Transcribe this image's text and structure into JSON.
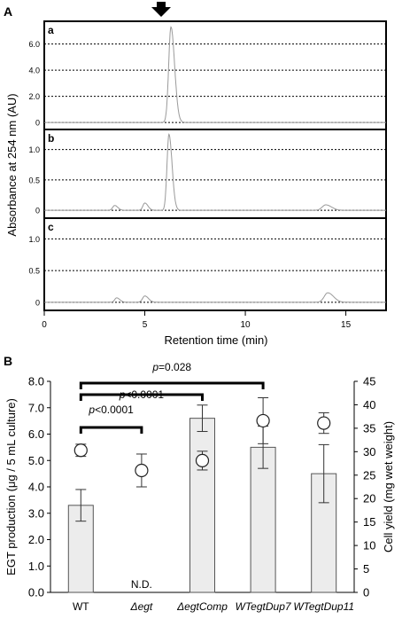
{
  "panel_a": {
    "label": "A",
    "ylabel": "Absorbance at 254 nm (AU)",
    "xlabel": "Retention time (min)",
    "arrow_icon": "down-arrow-icon",
    "colors": {
      "trace": "#9a9a9a",
      "frame": "#000000",
      "grid": "#000000"
    },
    "xticks": [
      0,
      5,
      10,
      15
    ],
    "xlim": [
      0,
      17
    ],
    "subplots": [
      {
        "label": "a",
        "yticks": [
          {
            "v": 0,
            "label": "0"
          },
          {
            "v": 2,
            "label": "2.0"
          },
          {
            "v": 4,
            "label": "4.0"
          },
          {
            "v": 6,
            "label": "6.0"
          }
        ],
        "ylim": [
          -0.4,
          7.6
        ],
        "series": [
          {
            "center": 6.3,
            "height": 7.3,
            "width": 0.14
          }
        ]
      },
      {
        "label": "b",
        "yticks": [
          {
            "v": 0,
            "label": "0"
          },
          {
            "v": 0.5,
            "label": "0.5"
          },
          {
            "v": 1.0,
            "label": "1.0"
          }
        ],
        "ylim": [
          -0.1,
          1.3
        ],
        "series": [
          {
            "center": 3.5,
            "height": 0.08,
            "width": 0.12
          },
          {
            "center": 5.0,
            "height": 0.12,
            "width": 0.12
          },
          {
            "center": 6.2,
            "height": 1.25,
            "width": 0.12
          },
          {
            "center": 14.0,
            "height": 0.09,
            "width": 0.22
          }
        ]
      },
      {
        "label": "c",
        "yticks": [
          {
            "v": 0,
            "label": "0"
          },
          {
            "v": 0.5,
            "label": "0.5"
          },
          {
            "v": 1.0,
            "label": "1.0"
          }
        ],
        "ylim": [
          -0.1,
          1.3
        ],
        "series": [
          {
            "center": 3.6,
            "height": 0.07,
            "width": 0.12
          },
          {
            "center": 5.0,
            "height": 0.1,
            "width": 0.14
          },
          {
            "center": 14.1,
            "height": 0.15,
            "width": 0.22
          }
        ]
      }
    ]
  },
  "chart_data": {
    "type": "bar",
    "panel_label": "B",
    "categories": [
      "WT",
      "Δegt",
      "ΔegtComp",
      "WTegtDup7",
      "WTegtDup11"
    ],
    "category_italic": [
      false,
      true,
      true,
      true,
      true
    ],
    "ylabel": "EGT production (μg / 5 mL culture)",
    "y2label": "Cell yield (mg wet weight)",
    "ylim": [
      0,
      8
    ],
    "y2lim": [
      0,
      45
    ],
    "yticks": [
      "0.0",
      "1.0",
      "2.0",
      "3.0",
      "4.0",
      "5.0",
      "6.0",
      "7.0",
      "8.0"
    ],
    "y2ticks": [
      "0",
      "5",
      "10",
      "15",
      "20",
      "25",
      "30",
      "35",
      "40",
      "45"
    ],
    "bars": [
      {
        "value": 3.3,
        "err": 0.6
      },
      {
        "value": null,
        "err": null,
        "note": "N.D."
      },
      {
        "value": 6.6,
        "err": 0.5
      },
      {
        "value": 5.5,
        "err": 0.8
      },
      {
        "value": 4.5,
        "err": 1.1
      }
    ],
    "cell_yield": [
      {
        "value": 30.3,
        "err": 1.3
      },
      {
        "value": 26.0,
        "err": 3.5
      },
      {
        "value": 28.1,
        "err": 2.0
      },
      {
        "value": 36.6,
        "err": 4.9
      },
      {
        "value": 36.1,
        "err": 2.2
      }
    ],
    "significance": [
      {
        "from": 0,
        "to": 1,
        "label": "p<0.0001"
      },
      {
        "from": 0,
        "to": 2,
        "label": "p<0.0001"
      },
      {
        "from": 0,
        "to": 3,
        "label": "p=0.028"
      }
    ],
    "colors": {
      "bar_fill": "#ececec",
      "bar_stroke": "#555555",
      "circle_fill": "#ffffff",
      "circle_stroke": "#222222"
    }
  }
}
